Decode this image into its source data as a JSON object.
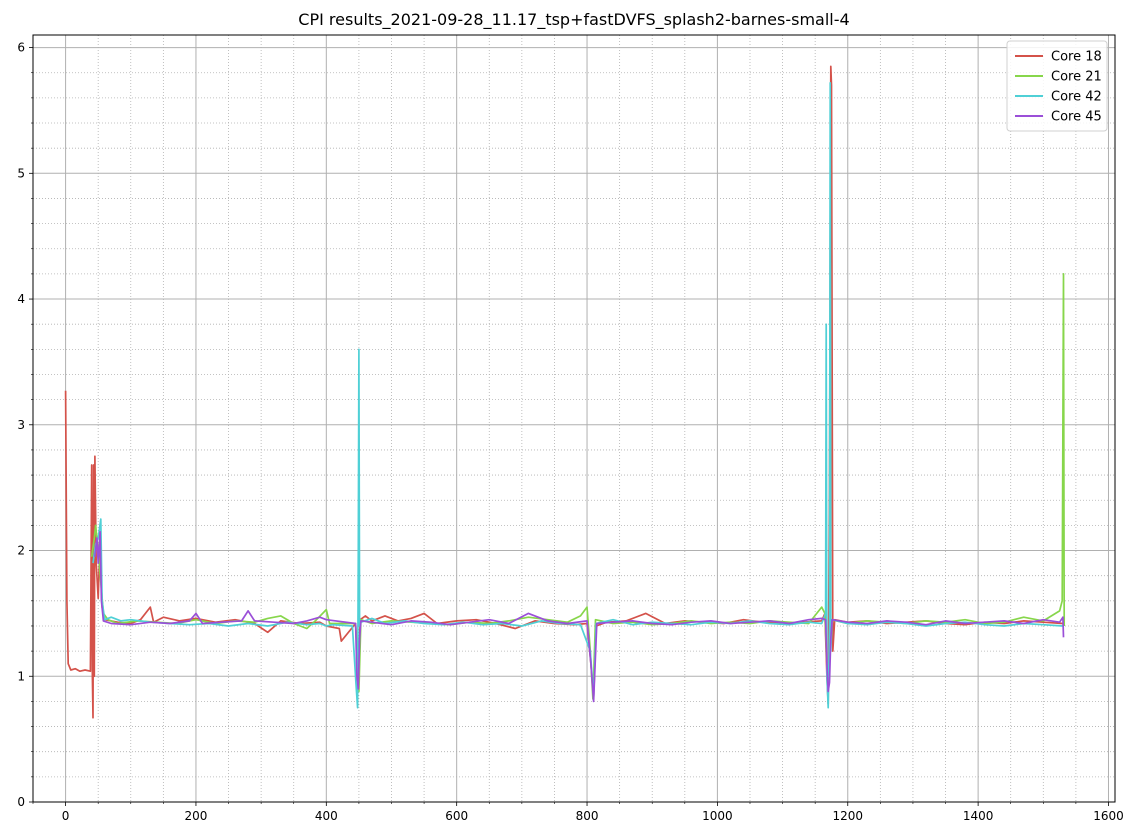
{
  "chart_data": {
    "type": "line",
    "title": "CPI results_2021-09-28_11.17_tsp+fastDVFS_splash2-barnes-small-4",
    "xlabel": "",
    "ylabel": "",
    "xlim": [
      -50,
      1610
    ],
    "ylim": [
      0,
      6.1
    ],
    "x_ticks": [
      0,
      200,
      400,
      600,
      800,
      1000,
      1200,
      1400,
      1600
    ],
    "y_ticks": [
      0,
      1,
      2,
      3,
      4,
      5,
      6
    ],
    "x_minor_step": 50,
    "y_minor_step": 0.2,
    "grid": {
      "major": true,
      "minor": true
    },
    "legend": {
      "position": "top-right"
    },
    "series": [
      {
        "name": "Core 18",
        "color": "#d4524a",
        "points": [
          [
            0,
            3.27
          ],
          [
            2,
            1.6
          ],
          [
            4,
            1.1
          ],
          [
            8,
            1.05
          ],
          [
            15,
            1.06
          ],
          [
            22,
            1.04
          ],
          [
            30,
            1.05
          ],
          [
            38,
            1.04
          ],
          [
            40,
            2.68
          ],
          [
            41,
            1.05
          ],
          [
            42,
            0.67
          ],
          [
            43,
            2.68
          ],
          [
            44,
            1.0
          ],
          [
            45,
            2.75
          ],
          [
            47,
            1.9
          ],
          [
            50,
            1.62
          ],
          [
            53,
            2.1
          ],
          [
            56,
            1.55
          ],
          [
            60,
            1.45
          ],
          [
            70,
            1.44
          ],
          [
            80,
            1.43
          ],
          [
            100,
            1.42
          ],
          [
            115,
            1.45
          ],
          [
            130,
            1.55
          ],
          [
            135,
            1.43
          ],
          [
            150,
            1.47
          ],
          [
            175,
            1.44
          ],
          [
            200,
            1.46
          ],
          [
            230,
            1.43
          ],
          [
            260,
            1.45
          ],
          [
            290,
            1.42
          ],
          [
            310,
            1.35
          ],
          [
            330,
            1.44
          ],
          [
            360,
            1.42
          ],
          [
            390,
            1.43
          ],
          [
            400,
            1.4
          ],
          [
            420,
            1.38
          ],
          [
            423,
            1.28
          ],
          [
            445,
            1.42
          ],
          [
            447,
            1.2
          ],
          [
            449,
            1.0
          ],
          [
            452,
            1.45
          ],
          [
            460,
            1.48
          ],
          [
            470,
            1.44
          ],
          [
            490,
            1.48
          ],
          [
            510,
            1.44
          ],
          [
            530,
            1.46
          ],
          [
            550,
            1.5
          ],
          [
            570,
            1.42
          ],
          [
            600,
            1.44
          ],
          [
            630,
            1.45
          ],
          [
            660,
            1.42
          ],
          [
            690,
            1.38
          ],
          [
            720,
            1.44
          ],
          [
            750,
            1.42
          ],
          [
            780,
            1.41
          ],
          [
            800,
            1.42
          ],
          [
            806,
            1.1
          ],
          [
            810,
            0.82
          ],
          [
            814,
            1.4
          ],
          [
            830,
            1.43
          ],
          [
            860,
            1.44
          ],
          [
            890,
            1.5
          ],
          [
            920,
            1.42
          ],
          [
            950,
            1.44
          ],
          [
            980,
            1.43
          ],
          [
            1010,
            1.42
          ],
          [
            1040,
            1.45
          ],
          [
            1070,
            1.43
          ],
          [
            1100,
            1.42
          ],
          [
            1130,
            1.43
          ],
          [
            1160,
            1.44
          ],
          [
            1165,
            1.5
          ],
          [
            1168,
            1.0
          ],
          [
            1170,
            0.78
          ],
          [
            1172,
            2.5
          ],
          [
            1174,
            5.85
          ],
          [
            1175,
            5.7
          ],
          [
            1177,
            1.2
          ],
          [
            1180,
            1.45
          ],
          [
            1200,
            1.43
          ],
          [
            1230,
            1.44
          ],
          [
            1260,
            1.42
          ],
          [
            1290,
            1.43
          ],
          [
            1320,
            1.44
          ],
          [
            1350,
            1.42
          ],
          [
            1380,
            1.41
          ],
          [
            1410,
            1.43
          ],
          [
            1440,
            1.42
          ],
          [
            1470,
            1.44
          ],
          [
            1500,
            1.43
          ],
          [
            1530,
            1.42
          ]
        ]
      },
      {
        "name": "Core 21",
        "color": "#87d64b",
        "points": [
          [
            40,
            1.95
          ],
          [
            44,
            2.1
          ],
          [
            46,
            2.2
          ],
          [
            50,
            2.0
          ],
          [
            54,
            1.75
          ],
          [
            58,
            1.5
          ],
          [
            65,
            1.45
          ],
          [
            80,
            1.42
          ],
          [
            110,
            1.44
          ],
          [
            140,
            1.43
          ],
          [
            170,
            1.42
          ],
          [
            200,
            1.45
          ],
          [
            230,
            1.42
          ],
          [
            260,
            1.44
          ],
          [
            290,
            1.43
          ],
          [
            310,
            1.46
          ],
          [
            330,
            1.48
          ],
          [
            350,
            1.42
          ],
          [
            370,
            1.38
          ],
          [
            385,
            1.45
          ],
          [
            400,
            1.53
          ],
          [
            405,
            1.42
          ],
          [
            445,
            1.42
          ],
          [
            448,
            1.1
          ],
          [
            450,
            0.88
          ],
          [
            453,
            1.45
          ],
          [
            470,
            1.42
          ],
          [
            500,
            1.44
          ],
          [
            530,
            1.43
          ],
          [
            560,
            1.42
          ],
          [
            590,
            1.41
          ],
          [
            620,
            1.43
          ],
          [
            650,
            1.42
          ],
          [
            680,
            1.44
          ],
          [
            710,
            1.47
          ],
          [
            740,
            1.45
          ],
          [
            770,
            1.43
          ],
          [
            790,
            1.48
          ],
          [
            800,
            1.55
          ],
          [
            805,
            1.2
          ],
          [
            809,
            0.82
          ],
          [
            813,
            1.45
          ],
          [
            840,
            1.42
          ],
          [
            870,
            1.43
          ],
          [
            900,
            1.41
          ],
          [
            930,
            1.42
          ],
          [
            960,
            1.44
          ],
          [
            990,
            1.42
          ],
          [
            1020,
            1.43
          ],
          [
            1050,
            1.42
          ],
          [
            1080,
            1.44
          ],
          [
            1110,
            1.43
          ],
          [
            1140,
            1.42
          ],
          [
            1160,
            1.55
          ],
          [
            1165,
            1.5
          ],
          [
            1168,
            1.1
          ],
          [
            1170,
            0.9
          ],
          [
            1173,
            1.2
          ],
          [
            1175,
            1.45
          ],
          [
            1200,
            1.42
          ],
          [
            1230,
            1.44
          ],
          [
            1260,
            1.43
          ],
          [
            1290,
            1.42
          ],
          [
            1320,
            1.44
          ],
          [
            1350,
            1.43
          ],
          [
            1380,
            1.45
          ],
          [
            1410,
            1.42
          ],
          [
            1440,
            1.43
          ],
          [
            1470,
            1.47
          ],
          [
            1500,
            1.44
          ],
          [
            1525,
            1.52
          ],
          [
            1529,
            1.6
          ],
          [
            1531,
            4.2
          ],
          [
            1532,
            1.4
          ]
        ]
      },
      {
        "name": "Core 42",
        "color": "#4fd0d6",
        "points": [
          [
            42,
            1.9
          ],
          [
            46,
            2.05
          ],
          [
            50,
            2.1
          ],
          [
            54,
            2.25
          ],
          [
            56,
            1.6
          ],
          [
            60,
            1.45
          ],
          [
            70,
            1.47
          ],
          [
            85,
            1.44
          ],
          [
            100,
            1.45
          ],
          [
            130,
            1.43
          ],
          [
            160,
            1.42
          ],
          [
            190,
            1.41
          ],
          [
            220,
            1.42
          ],
          [
            250,
            1.4
          ],
          [
            280,
            1.42
          ],
          [
            310,
            1.4
          ],
          [
            340,
            1.43
          ],
          [
            370,
            1.41
          ],
          [
            390,
            1.42
          ],
          [
            400,
            1.4
          ],
          [
            410,
            1.41
          ],
          [
            440,
            1.4
          ],
          [
            446,
            0.9
          ],
          [
            448,
            0.75
          ],
          [
            449,
            2.0
          ],
          [
            450,
            3.6
          ],
          [
            451,
            1.4
          ],
          [
            453,
            1.43
          ],
          [
            470,
            1.46
          ],
          [
            490,
            1.42
          ],
          [
            520,
            1.44
          ],
          [
            550,
            1.42
          ],
          [
            580,
            1.41
          ],
          [
            610,
            1.43
          ],
          [
            640,
            1.41
          ],
          [
            670,
            1.42
          ],
          [
            700,
            1.4
          ],
          [
            730,
            1.44
          ],
          [
            760,
            1.42
          ],
          [
            790,
            1.41
          ],
          [
            805,
            1.2
          ],
          [
            810,
            0.83
          ],
          [
            814,
            1.42
          ],
          [
            840,
            1.45
          ],
          [
            870,
            1.41
          ],
          [
            900,
            1.43
          ],
          [
            930,
            1.42
          ],
          [
            960,
            1.41
          ],
          [
            990,
            1.43
          ],
          [
            1020,
            1.42
          ],
          [
            1050,
            1.44
          ],
          [
            1080,
            1.42
          ],
          [
            1110,
            1.41
          ],
          [
            1140,
            1.43
          ],
          [
            1160,
            1.42
          ],
          [
            1166,
            1.5
          ],
          [
            1167,
            3.8
          ],
          [
            1168,
            1.0
          ],
          [
            1170,
            0.75
          ],
          [
            1172,
            1.4
          ],
          [
            1173,
            5.72
          ],
          [
            1174,
            1.2
          ],
          [
            1176,
            1.45
          ],
          [
            1200,
            1.42
          ],
          [
            1230,
            1.41
          ],
          [
            1260,
            1.43
          ],
          [
            1290,
            1.42
          ],
          [
            1320,
            1.4
          ],
          [
            1350,
            1.42
          ],
          [
            1380,
            1.43
          ],
          [
            1410,
            1.41
          ],
          [
            1440,
            1.4
          ],
          [
            1470,
            1.42
          ],
          [
            1500,
            1.41
          ],
          [
            1530,
            1.4
          ]
        ]
      },
      {
        "name": "Core 45",
        "color": "#9b4fd8",
        "points": [
          [
            45,
            1.95
          ],
          [
            48,
            2.1
          ],
          [
            50,
            1.9
          ],
          [
            53,
            2.15
          ],
          [
            55,
            1.6
          ],
          [
            58,
            1.44
          ],
          [
            70,
            1.42
          ],
          [
            100,
            1.41
          ],
          [
            130,
            1.43
          ],
          [
            160,
            1.42
          ],
          [
            190,
            1.44
          ],
          [
            200,
            1.5
          ],
          [
            210,
            1.42
          ],
          [
            240,
            1.43
          ],
          [
            270,
            1.44
          ],
          [
            280,
            1.52
          ],
          [
            290,
            1.44
          ],
          [
            320,
            1.43
          ],
          [
            350,
            1.42
          ],
          [
            370,
            1.44
          ],
          [
            390,
            1.47
          ],
          [
            400,
            1.45
          ],
          [
            445,
            1.42
          ],
          [
            447,
            1.0
          ],
          [
            449,
            0.9
          ],
          [
            451,
            1.3
          ],
          [
            453,
            1.44
          ],
          [
            470,
            1.43
          ],
          [
            500,
            1.41
          ],
          [
            530,
            1.44
          ],
          [
            560,
            1.43
          ],
          [
            590,
            1.41
          ],
          [
            620,
            1.43
          ],
          [
            650,
            1.45
          ],
          [
            680,
            1.42
          ],
          [
            710,
            1.5
          ],
          [
            740,
            1.44
          ],
          [
            770,
            1.42
          ],
          [
            800,
            1.44
          ],
          [
            806,
            1.1
          ],
          [
            810,
            0.8
          ],
          [
            815,
            1.42
          ],
          [
            840,
            1.43
          ],
          [
            870,
            1.44
          ],
          [
            900,
            1.42
          ],
          [
            930,
            1.41
          ],
          [
            960,
            1.43
          ],
          [
            990,
            1.44
          ],
          [
            1020,
            1.42
          ],
          [
            1050,
            1.43
          ],
          [
            1080,
            1.44
          ],
          [
            1110,
            1.42
          ],
          [
            1140,
            1.45
          ],
          [
            1160,
            1.46
          ],
          [
            1166,
            1.45
          ],
          [
            1168,
            1.1
          ],
          [
            1170,
            0.88
          ],
          [
            1172,
            0.95
          ],
          [
            1174,
            1.3
          ],
          [
            1176,
            1.45
          ],
          [
            1200,
            1.43
          ],
          [
            1230,
            1.42
          ],
          [
            1260,
            1.44
          ],
          [
            1290,
            1.43
          ],
          [
            1320,
            1.41
          ],
          [
            1350,
            1.44
          ],
          [
            1380,
            1.42
          ],
          [
            1410,
            1.43
          ],
          [
            1440,
            1.44
          ],
          [
            1470,
            1.42
          ],
          [
            1500,
            1.45
          ],
          [
            1525,
            1.43
          ],
          [
            1530,
            1.47
          ],
          [
            1531,
            1.31
          ]
        ]
      }
    ]
  }
}
